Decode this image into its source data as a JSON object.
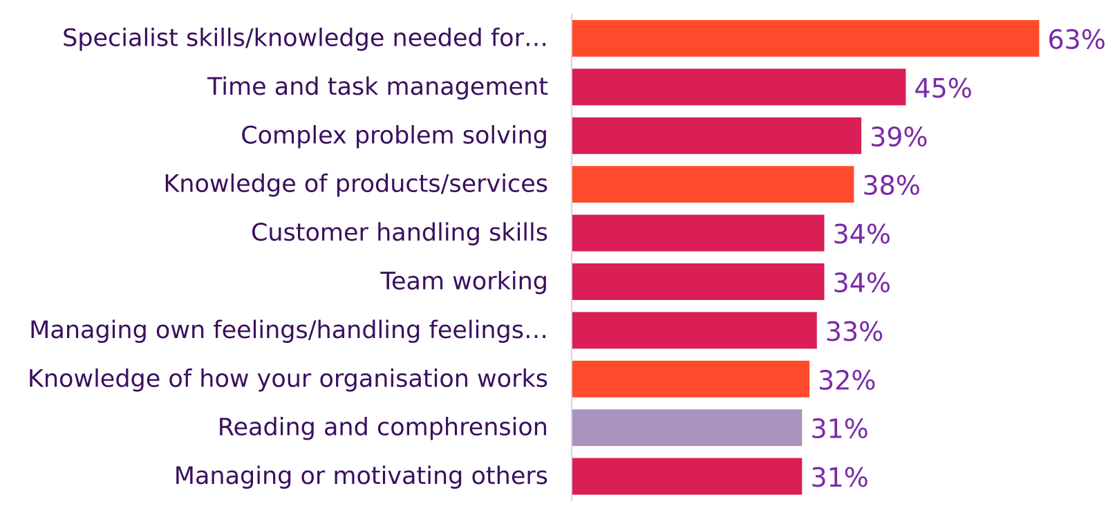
{
  "chart_data": {
    "type": "bar",
    "orientation": "horizontal",
    "categories": [
      "Specialist skills/knowledge needed for…",
      "Time and task management",
      "Complex problem solving",
      "Knowledge of products/services",
      "Customer handling skills",
      "Team working",
      "Managing own feelings/handling feelings…",
      "Knowledge of how your organisation works",
      "Reading and comphrension",
      "Managing or motivating others"
    ],
    "values": [
      63,
      45,
      39,
      38,
      34,
      34,
      33,
      32,
      31,
      31
    ],
    "value_labels": [
      "63%",
      "45%",
      "39%",
      "38%",
      "34%",
      "34%",
      "33%",
      "32%",
      "31%",
      "31%"
    ],
    "bar_colors": [
      "#ff4b2b",
      "#d91f55",
      "#d91f55",
      "#ff4b2b",
      "#d91f55",
      "#d91f55",
      "#d91f55",
      "#ff4b2b",
      "#a994bd",
      "#d91f55"
    ],
    "xlim": [
      0,
      63
    ],
    "grid": false,
    "legend": "none"
  }
}
